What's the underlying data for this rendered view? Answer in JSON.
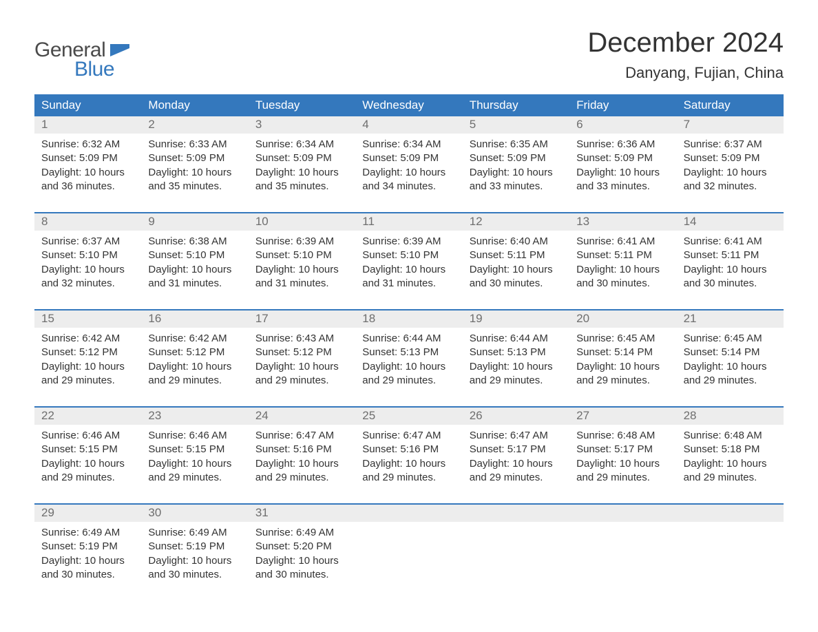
{
  "brand": {
    "word1": "General",
    "word2": "Blue",
    "flag_color": "#3478bd",
    "text1_color": "#4a4a4a",
    "text2_color": "#3478bd"
  },
  "header": {
    "month_title": "December 2024",
    "location": "Danyang, Fujian, China"
  },
  "colors": {
    "header_bar": "#3478bd",
    "header_text": "#ffffff",
    "daynum_bg": "#ededed",
    "daynum_text": "#6e6e6e",
    "body_text": "#333333",
    "week_border": "#3478bd",
    "page_bg": "#ffffff"
  },
  "weekdays": [
    "Sunday",
    "Monday",
    "Tuesday",
    "Wednesday",
    "Thursday",
    "Friday",
    "Saturday"
  ],
  "weeks": [
    {
      "days": [
        {
          "num": "1",
          "sunrise": "Sunrise: 6:32 AM",
          "sunset": "Sunset: 5:09 PM",
          "daylight1": "Daylight: 10 hours",
          "daylight2": "and 36 minutes."
        },
        {
          "num": "2",
          "sunrise": "Sunrise: 6:33 AM",
          "sunset": "Sunset: 5:09 PM",
          "daylight1": "Daylight: 10 hours",
          "daylight2": "and 35 minutes."
        },
        {
          "num": "3",
          "sunrise": "Sunrise: 6:34 AM",
          "sunset": "Sunset: 5:09 PM",
          "daylight1": "Daylight: 10 hours",
          "daylight2": "and 35 minutes."
        },
        {
          "num": "4",
          "sunrise": "Sunrise: 6:34 AM",
          "sunset": "Sunset: 5:09 PM",
          "daylight1": "Daylight: 10 hours",
          "daylight2": "and 34 minutes."
        },
        {
          "num": "5",
          "sunrise": "Sunrise: 6:35 AM",
          "sunset": "Sunset: 5:09 PM",
          "daylight1": "Daylight: 10 hours",
          "daylight2": "and 33 minutes."
        },
        {
          "num": "6",
          "sunrise": "Sunrise: 6:36 AM",
          "sunset": "Sunset: 5:09 PM",
          "daylight1": "Daylight: 10 hours",
          "daylight2": "and 33 minutes."
        },
        {
          "num": "7",
          "sunrise": "Sunrise: 6:37 AM",
          "sunset": "Sunset: 5:09 PM",
          "daylight1": "Daylight: 10 hours",
          "daylight2": "and 32 minutes."
        }
      ]
    },
    {
      "days": [
        {
          "num": "8",
          "sunrise": "Sunrise: 6:37 AM",
          "sunset": "Sunset: 5:10 PM",
          "daylight1": "Daylight: 10 hours",
          "daylight2": "and 32 minutes."
        },
        {
          "num": "9",
          "sunrise": "Sunrise: 6:38 AM",
          "sunset": "Sunset: 5:10 PM",
          "daylight1": "Daylight: 10 hours",
          "daylight2": "and 31 minutes."
        },
        {
          "num": "10",
          "sunrise": "Sunrise: 6:39 AM",
          "sunset": "Sunset: 5:10 PM",
          "daylight1": "Daylight: 10 hours",
          "daylight2": "and 31 minutes."
        },
        {
          "num": "11",
          "sunrise": "Sunrise: 6:39 AM",
          "sunset": "Sunset: 5:10 PM",
          "daylight1": "Daylight: 10 hours",
          "daylight2": "and 31 minutes."
        },
        {
          "num": "12",
          "sunrise": "Sunrise: 6:40 AM",
          "sunset": "Sunset: 5:11 PM",
          "daylight1": "Daylight: 10 hours",
          "daylight2": "and 30 minutes."
        },
        {
          "num": "13",
          "sunrise": "Sunrise: 6:41 AM",
          "sunset": "Sunset: 5:11 PM",
          "daylight1": "Daylight: 10 hours",
          "daylight2": "and 30 minutes."
        },
        {
          "num": "14",
          "sunrise": "Sunrise: 6:41 AM",
          "sunset": "Sunset: 5:11 PM",
          "daylight1": "Daylight: 10 hours",
          "daylight2": "and 30 minutes."
        }
      ]
    },
    {
      "days": [
        {
          "num": "15",
          "sunrise": "Sunrise: 6:42 AM",
          "sunset": "Sunset: 5:12 PM",
          "daylight1": "Daylight: 10 hours",
          "daylight2": "and 29 minutes."
        },
        {
          "num": "16",
          "sunrise": "Sunrise: 6:42 AM",
          "sunset": "Sunset: 5:12 PM",
          "daylight1": "Daylight: 10 hours",
          "daylight2": "and 29 minutes."
        },
        {
          "num": "17",
          "sunrise": "Sunrise: 6:43 AM",
          "sunset": "Sunset: 5:12 PM",
          "daylight1": "Daylight: 10 hours",
          "daylight2": "and 29 minutes."
        },
        {
          "num": "18",
          "sunrise": "Sunrise: 6:44 AM",
          "sunset": "Sunset: 5:13 PM",
          "daylight1": "Daylight: 10 hours",
          "daylight2": "and 29 minutes."
        },
        {
          "num": "19",
          "sunrise": "Sunrise: 6:44 AM",
          "sunset": "Sunset: 5:13 PM",
          "daylight1": "Daylight: 10 hours",
          "daylight2": "and 29 minutes."
        },
        {
          "num": "20",
          "sunrise": "Sunrise: 6:45 AM",
          "sunset": "Sunset: 5:14 PM",
          "daylight1": "Daylight: 10 hours",
          "daylight2": "and 29 minutes."
        },
        {
          "num": "21",
          "sunrise": "Sunrise: 6:45 AM",
          "sunset": "Sunset: 5:14 PM",
          "daylight1": "Daylight: 10 hours",
          "daylight2": "and 29 minutes."
        }
      ]
    },
    {
      "days": [
        {
          "num": "22",
          "sunrise": "Sunrise: 6:46 AM",
          "sunset": "Sunset: 5:15 PM",
          "daylight1": "Daylight: 10 hours",
          "daylight2": "and 29 minutes."
        },
        {
          "num": "23",
          "sunrise": "Sunrise: 6:46 AM",
          "sunset": "Sunset: 5:15 PM",
          "daylight1": "Daylight: 10 hours",
          "daylight2": "and 29 minutes."
        },
        {
          "num": "24",
          "sunrise": "Sunrise: 6:47 AM",
          "sunset": "Sunset: 5:16 PM",
          "daylight1": "Daylight: 10 hours",
          "daylight2": "and 29 minutes."
        },
        {
          "num": "25",
          "sunrise": "Sunrise: 6:47 AM",
          "sunset": "Sunset: 5:16 PM",
          "daylight1": "Daylight: 10 hours",
          "daylight2": "and 29 minutes."
        },
        {
          "num": "26",
          "sunrise": "Sunrise: 6:47 AM",
          "sunset": "Sunset: 5:17 PM",
          "daylight1": "Daylight: 10 hours",
          "daylight2": "and 29 minutes."
        },
        {
          "num": "27",
          "sunrise": "Sunrise: 6:48 AM",
          "sunset": "Sunset: 5:17 PM",
          "daylight1": "Daylight: 10 hours",
          "daylight2": "and 29 minutes."
        },
        {
          "num": "28",
          "sunrise": "Sunrise: 6:48 AM",
          "sunset": "Sunset: 5:18 PM",
          "daylight1": "Daylight: 10 hours",
          "daylight2": "and 29 minutes."
        }
      ]
    },
    {
      "days": [
        {
          "num": "29",
          "sunrise": "Sunrise: 6:49 AM",
          "sunset": "Sunset: 5:19 PM",
          "daylight1": "Daylight: 10 hours",
          "daylight2": "and 30 minutes."
        },
        {
          "num": "30",
          "sunrise": "Sunrise: 6:49 AM",
          "sunset": "Sunset: 5:19 PM",
          "daylight1": "Daylight: 10 hours",
          "daylight2": "and 30 minutes."
        },
        {
          "num": "31",
          "sunrise": "Sunrise: 6:49 AM",
          "sunset": "Sunset: 5:20 PM",
          "daylight1": "Daylight: 10 hours",
          "daylight2": "and 30 minutes."
        },
        {
          "empty": true
        },
        {
          "empty": true
        },
        {
          "empty": true
        },
        {
          "empty": true
        }
      ]
    }
  ]
}
